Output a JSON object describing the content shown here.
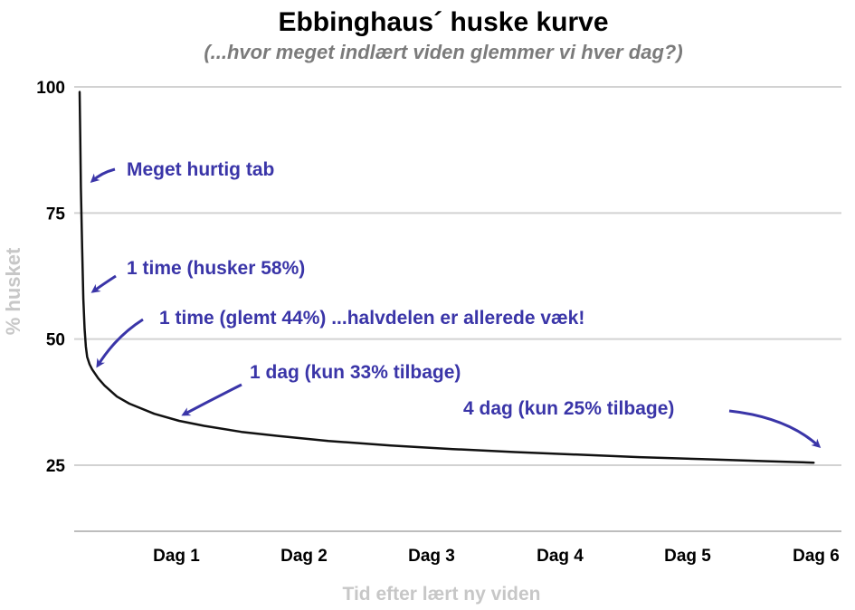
{
  "chart_data": {
    "type": "line",
    "title": "Ebbinghaus´ huske kurve",
    "subtitle": "(...hvor meget indlært viden glemmer vi hver dag?)",
    "xlabel": "Tid efter lært ny viden",
    "ylabel": "% husket",
    "x_ticks": [
      "Dag 1",
      "Dag 2",
      "Dag 3",
      "Dag 4",
      "Dag 5",
      "Dag 6"
    ],
    "y_ticks": [
      "100",
      "75",
      "50",
      "25"
    ],
    "ylim": [
      11,
      100
    ],
    "xlim": [
      0,
      6
    ],
    "grid": true,
    "series": [
      {
        "x": [
          0,
          0.005,
          0.01,
          0.02,
          0.03,
          0.04,
          0.05,
          0.06,
          0.08,
          0.1,
          0.15,
          0.2,
          0.3,
          0.4,
          0.6,
          0.8,
          1.0,
          1.3,
          1.6,
          2.0,
          2.5,
          3.0,
          3.5,
          4.0,
          4.5,
          5.0,
          5.5,
          5.9
        ],
        "y": [
          99,
          90,
          80,
          68,
          58,
          52,
          48.5,
          46.5,
          45,
          44,
          42.2,
          40.8,
          38.6,
          37.2,
          35.2,
          33.8,
          32.8,
          31.6,
          30.8,
          29.8,
          28.9,
          28.2,
          27.6,
          27.1,
          26.6,
          26.2,
          25.8,
          25.5
        ],
        "color": "#111111"
      }
    ],
    "annotations": [
      {
        "text": "Meget hurtig tab",
        "color": "#3a35a8"
      },
      {
        "text": "1 time (husker 58%)",
        "color": "#3a35a8"
      },
      {
        "text": "1 time (glemt 44%) ...halvdelen er allerede væk!",
        "color": "#3a35a8"
      },
      {
        "text": "1 dag (kun 33% tilbage)",
        "color": "#3a35a8"
      },
      {
        "text": "4 dag (kun 25% tilbage)",
        "color": "#3a35a8"
      }
    ]
  }
}
